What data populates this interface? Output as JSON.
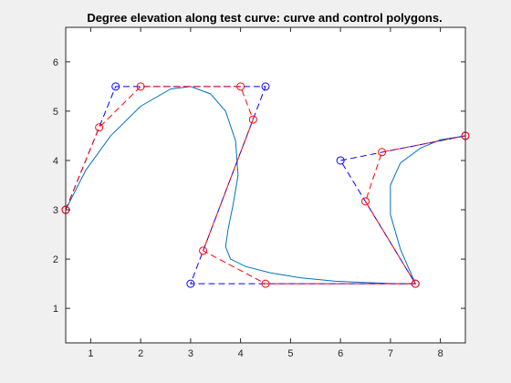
{
  "chart_data": {
    "type": "line",
    "title": "Degree elevation along test curve: curve and control polygons.",
    "xlabel": "",
    "ylabel": "",
    "xlim": [
      0.5,
      8.5
    ],
    "ylim": [
      0.3,
      6.7
    ],
    "xticks": [
      1,
      2,
      3,
      4,
      5,
      6,
      7,
      8
    ],
    "yticks": [
      1,
      2,
      3,
      4,
      5,
      6
    ],
    "xtick_labels": [
      "1",
      "2",
      "3",
      "4",
      "5",
      "6",
      "7",
      "8"
    ],
    "ytick_labels": [
      "1",
      "2",
      "3",
      "4",
      "5",
      "6"
    ],
    "grid": false,
    "legend": false,
    "series": [
      {
        "style": "solid line, no markers",
        "color": "#0072bd",
        "x": [
          0.5,
          0.9,
          1.4,
          2.0,
          2.6,
          3.0,
          3.4,
          3.7,
          3.9,
          3.95,
          3.85,
          3.75,
          3.7,
          3.8,
          4.1,
          4.6,
          5.2,
          5.9,
          6.6,
          7.1,
          7.5,
          7.2,
          7.0,
          7.0,
          7.2,
          7.6,
          8.0,
          8.5
        ],
        "y": [
          3.0,
          3.8,
          4.5,
          5.1,
          5.45,
          5.5,
          5.35,
          5.0,
          4.4,
          3.7,
          3.1,
          2.6,
          2.25,
          2.0,
          1.85,
          1.72,
          1.62,
          1.55,
          1.52,
          1.5,
          1.5,
          2.2,
          2.9,
          3.5,
          3.95,
          4.25,
          4.42,
          4.5
        ]
      },
      {
        "style": "dashed line with circle markers",
        "color": "#0000ff",
        "x": [
          0.5,
          1.5,
          4.5,
          3.0,
          7.5,
          6.0,
          8.5
        ],
        "y": [
          3.0,
          5.5,
          5.5,
          1.5,
          1.5,
          4.0,
          4.5
        ]
      },
      {
        "style": "dashed line with circle markers",
        "color": "#ff0000",
        "x": [
          0.5,
          1.17,
          2.0,
          4.0,
          4.25,
          3.25,
          4.5,
          7.5,
          6.5,
          6.83,
          8.5
        ],
        "y": [
          3.0,
          4.67,
          5.5,
          5.5,
          4.83,
          2.17,
          1.5,
          1.5,
          3.17,
          4.17,
          4.5
        ]
      }
    ]
  }
}
